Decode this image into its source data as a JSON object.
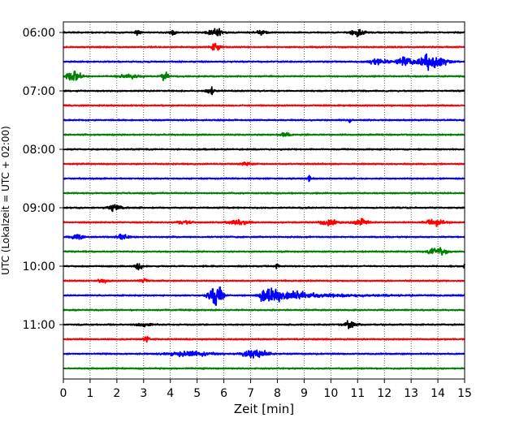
{
  "chart_data": {
    "type": "line",
    "subtype": "helicorder",
    "xlabel": "Zeit  [min]",
    "ylabel": "UTC (Lokalzeit = UTC + 02:00)",
    "xlim": [
      0,
      15
    ],
    "x_ticks": [
      "0",
      "1",
      "2",
      "3",
      "4",
      "5",
      "6",
      "7",
      "8",
      "9",
      "10",
      "11",
      "12",
      "13",
      "14",
      "15"
    ],
    "y_tick_labels": [
      "06:00",
      "07:00",
      "08:00",
      "09:00",
      "10:00",
      "11:00"
    ],
    "trace_start_time": "06:00",
    "trace_interval_minutes": 15,
    "trace_count": 24,
    "trace_colors": [
      "#000000",
      "#ff0000",
      "#0000ff",
      "#008000"
    ],
    "grid": "vertical dotted lines at each minute",
    "bursts": [
      {
        "trace": 0,
        "center_min": 2.8,
        "amplitude": 0.3,
        "width_min": 0.15
      },
      {
        "trace": 0,
        "center_min": 4.1,
        "amplitude": 0.22,
        "width_min": 0.15
      },
      {
        "trace": 0,
        "center_min": 5.7,
        "amplitude": 0.32,
        "width_min": 0.45
      },
      {
        "trace": 0,
        "center_min": 7.4,
        "amplitude": 0.18,
        "width_min": 0.3
      },
      {
        "trace": 0,
        "center_min": 11.0,
        "amplitude": 0.3,
        "width_min": 0.4
      },
      {
        "trace": 1,
        "center_min": 5.7,
        "amplitude": 0.35,
        "width_min": 0.3
      },
      {
        "trace": 2,
        "center_min": 11.8,
        "amplitude": 0.25,
        "width_min": 0.6
      },
      {
        "trace": 2,
        "center_min": 12.8,
        "amplitude": 0.45,
        "width_min": 0.4
      },
      {
        "trace": 2,
        "center_min": 13.8,
        "amplitude": 0.75,
        "width_min": 0.7
      },
      {
        "trace": 3,
        "center_min": 0.4,
        "amplitude": 0.5,
        "width_min": 0.4
      },
      {
        "trace": 3,
        "center_min": 2.5,
        "amplitude": 0.2,
        "width_min": 0.6
      },
      {
        "trace": 3,
        "center_min": 3.8,
        "amplitude": 0.4,
        "width_min": 0.2
      },
      {
        "trace": 4,
        "center_min": 5.5,
        "amplitude": 0.35,
        "width_min": 0.2
      },
      {
        "trace": 6,
        "center_min": 10.7,
        "amplitude": 0.2,
        "width_min": 0.1
      },
      {
        "trace": 7,
        "center_min": 8.3,
        "amplitude": 0.18,
        "width_min": 0.3
      },
      {
        "trace": 9,
        "center_min": 6.8,
        "amplitude": 0.15,
        "width_min": 0.3
      },
      {
        "trace": 10,
        "center_min": 9.2,
        "amplitude": 0.35,
        "width_min": 0.06
      },
      {
        "trace": 12,
        "center_min": 1.9,
        "amplitude": 0.3,
        "width_min": 0.35
      },
      {
        "trace": 13,
        "center_min": 4.5,
        "amplitude": 0.18,
        "width_min": 0.4
      },
      {
        "trace": 13,
        "center_min": 6.5,
        "amplitude": 0.2,
        "width_min": 0.6
      },
      {
        "trace": 13,
        "center_min": 9.9,
        "amplitude": 0.28,
        "width_min": 0.5
      },
      {
        "trace": 13,
        "center_min": 11.1,
        "amplitude": 0.3,
        "width_min": 0.4
      },
      {
        "trace": 13,
        "center_min": 13.9,
        "amplitude": 0.28,
        "width_min": 0.5
      },
      {
        "trace": 14,
        "center_min": 0.5,
        "amplitude": 0.3,
        "width_min": 0.3
      },
      {
        "trace": 14,
        "center_min": 2.2,
        "amplitude": 0.2,
        "width_min": 0.4
      },
      {
        "trace": 15,
        "center_min": 14.0,
        "amplitude": 0.35,
        "width_min": 0.5
      },
      {
        "trace": 16,
        "center_min": 2.8,
        "amplitude": 0.42,
        "width_min": 0.2
      },
      {
        "trace": 16,
        "center_min": 8.0,
        "amplitude": 0.25,
        "width_min": 0.15
      },
      {
        "trace": 16,
        "center_min": 15.0,
        "amplitude": 0.35,
        "width_min": 0.08
      },
      {
        "trace": 17,
        "center_min": 1.5,
        "amplitude": 0.2,
        "width_min": 0.3
      },
      {
        "trace": 17,
        "center_min": 3.0,
        "amplitude": 0.18,
        "width_min": 0.2
      },
      {
        "trace": 18,
        "center_min": 5.7,
        "amplitude": 1.4,
        "width_min": 0.35
      },
      {
        "trace": 18,
        "center_min": 7.5,
        "amplitude": 0.75,
        "width_min": 2.5
      },
      {
        "trace": 20,
        "center_min": 3.0,
        "amplitude": 0.15,
        "width_min": 0.4
      },
      {
        "trace": 20,
        "center_min": 10.7,
        "amplitude": 0.3,
        "width_min": 0.4
      },
      {
        "trace": 21,
        "center_min": 3.1,
        "amplitude": 0.3,
        "width_min": 0.15
      },
      {
        "trace": 22,
        "center_min": 4.8,
        "amplitude": 0.2,
        "width_min": 1.2
      },
      {
        "trace": 22,
        "center_min": 7.2,
        "amplitude": 0.38,
        "width_min": 0.7
      }
    ]
  }
}
